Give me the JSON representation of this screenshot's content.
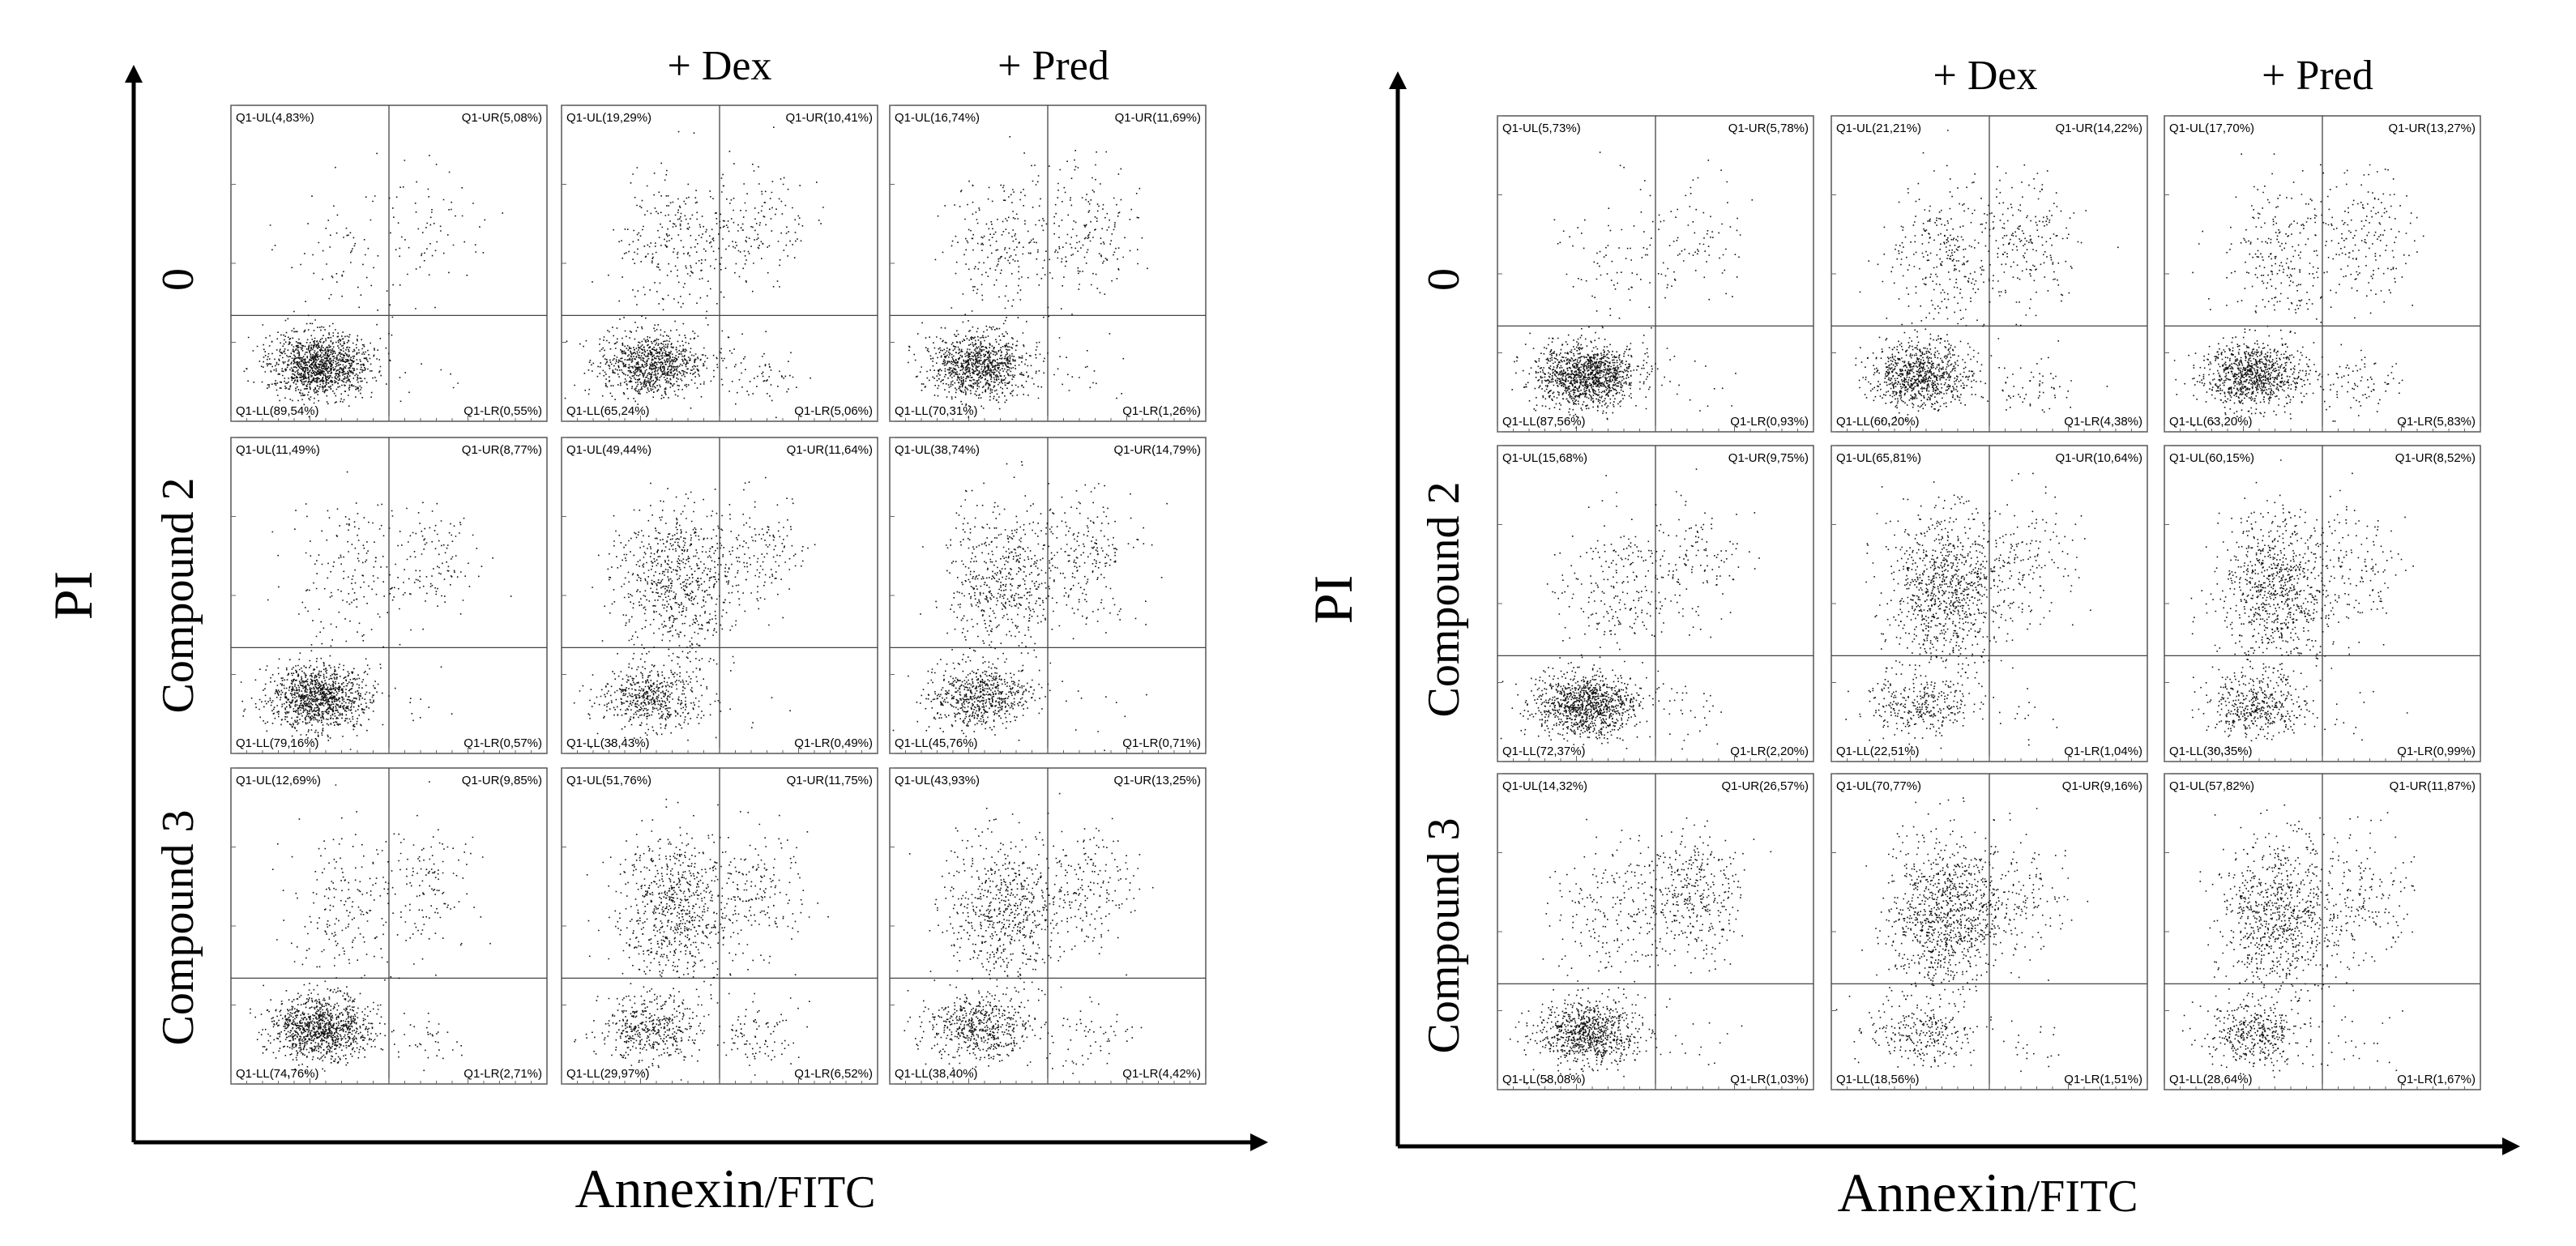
{
  "chart_data": {
    "type": "scatter",
    "description_type": "flow cytometry quadrant dot plots",
    "panels": [
      {
        "y_axis_label": "PI",
        "x_axis_label": "Annexin",
        "x_axis_unit": "/FITC",
        "column_headers": [
          "",
          "+ Dex",
          "+ Pred"
        ],
        "row_labels": [
          "0",
          "Compound 2",
          "Compound 3"
        ],
        "plots": [
          [
            {
              "UL": "Q1-UL(4,83%)",
              "UR": "Q1-UR(5,08%)",
              "LL": "Q1-LL(89,54%)",
              "LR": "Q1-LR(0,55%)"
            },
            {
              "UL": "Q1-UL(19,29%)",
              "UR": "Q1-UR(10,41%)",
              "LL": "Q1-LL(65,24%)",
              "LR": "Q1-LR(5,06%)"
            },
            {
              "UL": "Q1-UL(16,74%)",
              "UR": "Q1-UR(11,69%)",
              "LL": "Q1-LL(70,31%)",
              "LR": "Q1-LR(1,26%)"
            }
          ],
          [
            {
              "UL": "Q1-UL(11,49%)",
              "UR": "Q1-UR(8,77%)",
              "LL": "Q1-LL(79,16%)",
              "LR": "Q1-LR(0,57%)"
            },
            {
              "UL": "Q1-UL(49,44%)",
              "UR": "Q1-UR(11,64%)",
              "LL": "Q1-LL(38,43%)",
              "LR": "Q1-LR(0,49%)"
            },
            {
              "UL": "Q1-UL(38,74%)",
              "UR": "Q1-UR(14,79%)",
              "LL": "Q1-LL(45,76%)",
              "LR": "Q1-LR(0,71%)"
            }
          ],
          [
            {
              "UL": "Q1-UL(12,69%)",
              "UR": "Q1-UR(9,85%)",
              "LL": "Q1-LL(74,76%)",
              "LR": "Q1-LR(2,71%)"
            },
            {
              "UL": "Q1-UL(51,76%)",
              "UR": "Q1-UR(11,75%)",
              "LL": "Q1-LL(29,97%)",
              "LR": "Q1-LR(6,52%)"
            },
            {
              "UL": "Q1-UL(43,93%)",
              "UR": "Q1-UR(13,25%)",
              "LL": "Q1-LL(38,40%)",
              "LR": "Q1-LR(4,42%)"
            }
          ]
        ]
      },
      {
        "y_axis_label": "PI",
        "x_axis_label": "Annexin",
        "x_axis_unit": "/FITC",
        "column_headers": [
          "",
          "+ Dex",
          "+ Pred"
        ],
        "row_labels": [
          "0",
          "Compound 2",
          "Compound 3"
        ],
        "plots": [
          [
            {
              "UL": "Q1-UL(5,73%)",
              "UR": "Q1-UR(5,78%)",
              "LL": "Q1-LL(87,56%)",
              "LR": "Q1-LR(0,93%)"
            },
            {
              "UL": "Q1-UL(21,21%)",
              "UR": "Q1-UR(14,22%)",
              "LL": "Q1-LL(60,20%)",
              "LR": "Q1-LR(4,38%)"
            },
            {
              "UL": "Q1-UL(17,70%)",
              "UR": "Q1-UR(13,27%)",
              "LL": "Q1-LL(63,20%)",
              "LR": "Q1-LR(5,83%)"
            }
          ],
          [
            {
              "UL": "Q1-UL(15,68%)",
              "UR": "Q1-UR(9,75%)",
              "LL": "Q1-LL(72,37%)",
              "LR": "Q1-LR(2,20%)"
            },
            {
              "UL": "Q1-UL(65,81%)",
              "UR": "Q1-UR(10,64%)",
              "LL": "Q1-LL(22,51%)",
              "LR": "Q1-LR(1,04%)"
            },
            {
              "UL": "Q1-UL(60,15%)",
              "UR": "Q1-UR(8,52%)",
              "LL": "Q1-LL(30,35%)",
              "LR": "Q1-LR(0,99%)"
            }
          ],
          [
            {
              "UL": "Q1-UL(14,32%)",
              "UR": "Q1-UR(26,57%)",
              "LL": "Q1-LL(58,08%)",
              "LR": "Q1-LR(1,03%)"
            },
            {
              "UL": "Q1-UL(70,77%)",
              "UR": "Q1-UR(9,16%)",
              "LL": "Q1-LL(18,56%)",
              "LR": "Q1-LR(1,51%)"
            },
            {
              "UL": "Q1-UL(57,82%)",
              "UR": "Q1-UR(11,87%)",
              "LL": "Q1-LL(28,64%)",
              "LR": "Q1-LR(1,67%)"
            }
          ]
        ]
      }
    ]
  }
}
